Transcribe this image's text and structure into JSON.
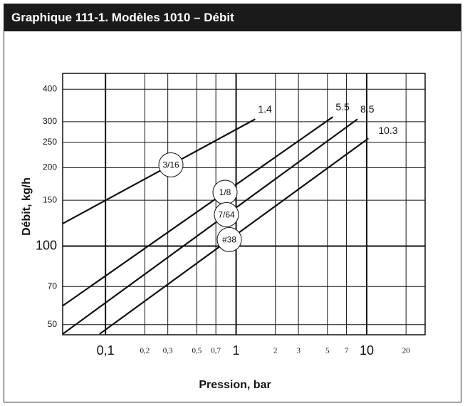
{
  "chart_data": {
    "type": "line",
    "title": "Graphique 111-1. Modèles 1010 – Débit",
    "x_label": "Pression, bar",
    "y_label": "Débit, kg/h",
    "log_x": true,
    "log_y": true,
    "grid": true,
    "xlim": [
      0.047,
      28
    ],
    "ylim": [
      45.7,
      460
    ],
    "xticks": [
      {
        "value": 0.1,
        "label": "0,1"
      },
      {
        "value": 0.2,
        "label": "0,2"
      },
      {
        "value": 0.3,
        "label": "0,3"
      },
      {
        "value": 0.5,
        "label": "0,5"
      },
      {
        "value": 0.7,
        "label": "0,7"
      },
      1,
      2,
      3,
      5,
      7,
      10,
      20
    ],
    "yticks": [
      50,
      70,
      100,
      150,
      200,
      250,
      300,
      400
    ],
    "series": [
      {
        "name": "3/16",
        "color": "#111111",
        "x": [
          0.047,
          1.4
        ],
        "values": [
          122,
          307
        ],
        "end_label": "1.4"
      },
      {
        "name": "1/8",
        "color": "#111111",
        "x": [
          0.047,
          5.5
        ],
        "values": [
          59,
          313
        ],
        "end_label": "5.5"
      },
      {
        "name": "7/64",
        "color": "#111111",
        "x": [
          0.047,
          8.5
        ],
        "values": [
          46,
          307
        ],
        "end_label": "8.5"
      },
      {
        "name": "#38",
        "color": "#111111",
        "x": [
          0.09,
          10.3
        ],
        "values": [
          46,
          259
        ],
        "end_label": "10.3"
      }
    ]
  }
}
